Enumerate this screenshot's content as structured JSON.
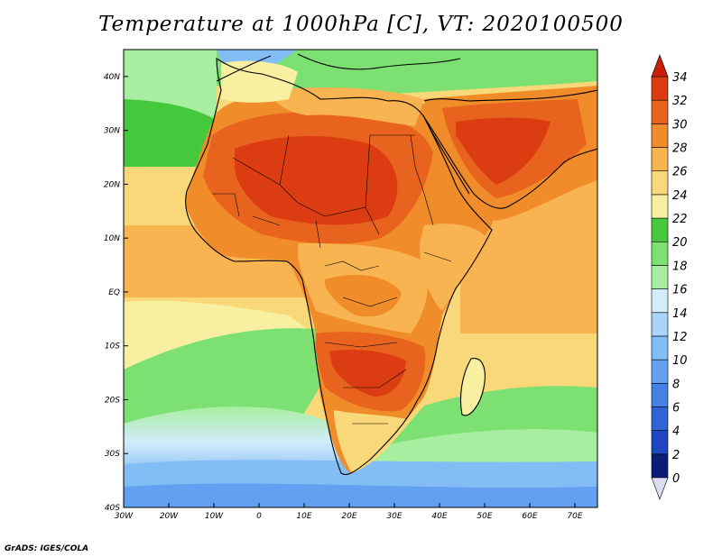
{
  "title": "Temperature at 1000hPa [C], VT: 2020100500",
  "credit": "GrADS: IGES/COLA",
  "map": {
    "lon_range": [
      -30,
      75
    ],
    "lat_range": [
      -40,
      45
    ],
    "lon_ticks": [
      {
        "value": -30,
        "label": "30W"
      },
      {
        "value": -20,
        "label": "20W"
      },
      {
        "value": -10,
        "label": "10W"
      },
      {
        "value": 0,
        "label": "0"
      },
      {
        "value": 10,
        "label": "10E"
      },
      {
        "value": 20,
        "label": "20E"
      },
      {
        "value": 30,
        "label": "30E"
      },
      {
        "value": 40,
        "label": "40E"
      },
      {
        "value": 50,
        "label": "50E"
      },
      {
        "value": 60,
        "label": "60E"
      },
      {
        "value": 70,
        "label": "70E"
      }
    ],
    "lat_ticks": [
      {
        "value": 40,
        "label": "40N"
      },
      {
        "value": 30,
        "label": "30N"
      },
      {
        "value": 20,
        "label": "20N"
      },
      {
        "value": 10,
        "label": "10N"
      },
      {
        "value": 0,
        "label": "EQ"
      },
      {
        "value": -10,
        "label": "10S"
      },
      {
        "value": -20,
        "label": "20S"
      },
      {
        "value": -30,
        "label": "30S"
      },
      {
        "value": -40,
        "label": "40S"
      }
    ]
  },
  "colorbar": {
    "levels": [
      0,
      2,
      4,
      6,
      8,
      10,
      12,
      14,
      16,
      18,
      20,
      22,
      24,
      26,
      28,
      30,
      32,
      34
    ],
    "labels": [
      "0",
      "2",
      "4",
      "6",
      "8",
      "10",
      "12",
      "14",
      "16",
      "18",
      "20",
      "22",
      "24",
      "26",
      "28",
      "30",
      "32",
      "34"
    ],
    "colors": [
      "#0a1e78",
      "#1e46be",
      "#2e64d6",
      "#4682e6",
      "#64a0f0",
      "#82bef5",
      "#aad4fa",
      "#d2ecfa",
      "#a8eea0",
      "#7ce072",
      "#46c83c",
      "#f8f0a0",
      "#f8d878",
      "#f8b450",
      "#f08c2a",
      "#e8641e",
      "#dc3c12"
    ],
    "under_color": "#dcdcf5",
    "over_color": "#c81e0a"
  },
  "colors": {
    "ocean_warm": "#f8b450",
    "coastline": "#000000"
  }
}
